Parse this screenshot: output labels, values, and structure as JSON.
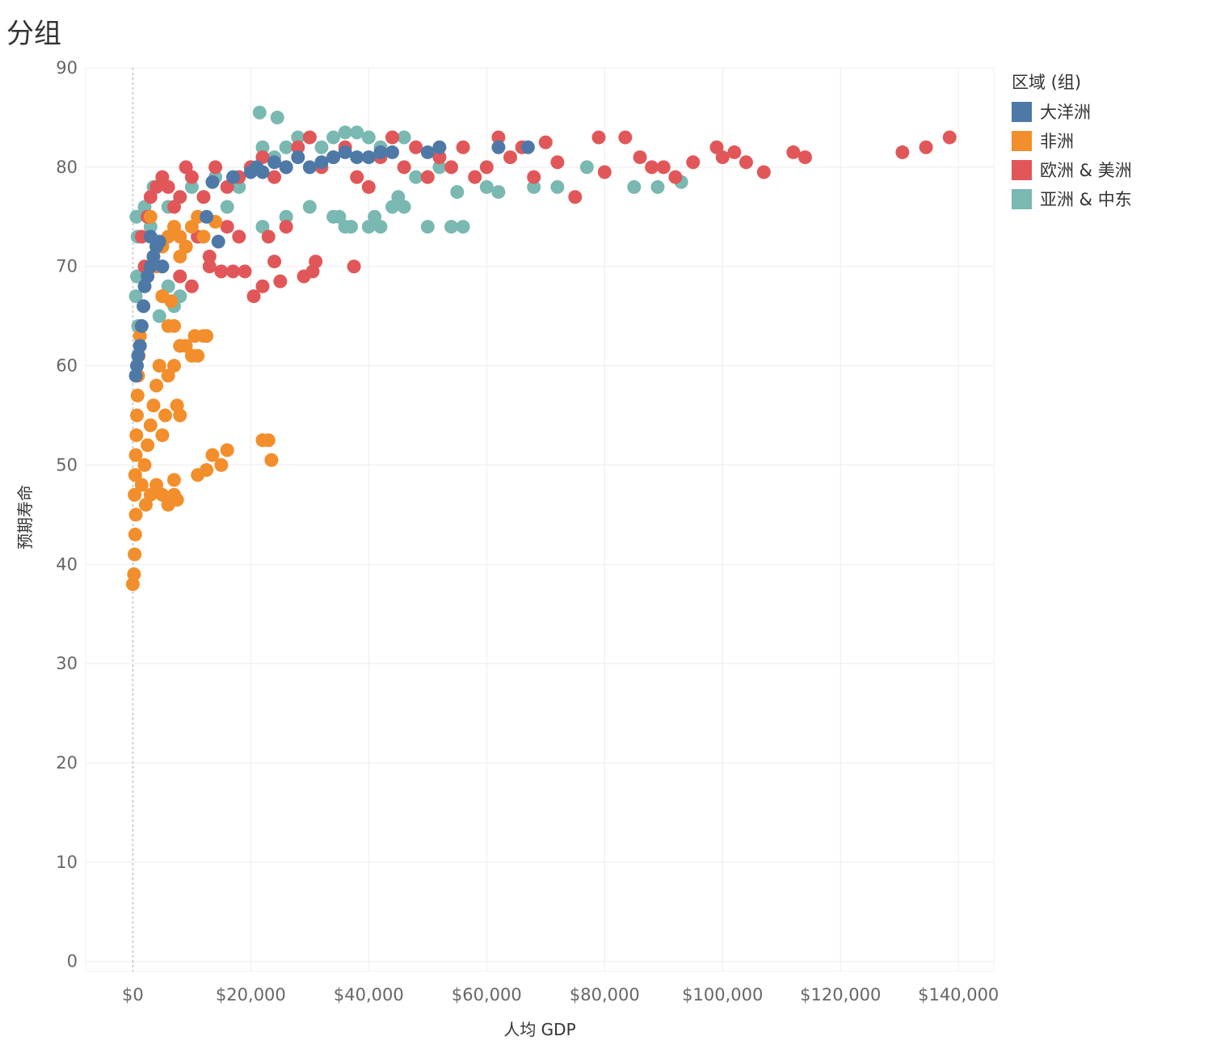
{
  "page": {
    "title": "分组"
  },
  "legend": {
    "title": "区域 (组)"
  },
  "chart_data": {
    "type": "scatter",
    "title": "分组",
    "xlabel": "人均 GDP",
    "ylabel": "预期寿命",
    "xlim": [
      -8000,
      146000
    ],
    "ylim": [
      -1,
      90
    ],
    "x_ticks": [
      0,
      20000,
      40000,
      60000,
      80000,
      100000,
      120000,
      140000
    ],
    "x_tick_labels": [
      "$0",
      "$20,000",
      "$40,000",
      "$60,000",
      "$80,000",
      "$100,000",
      "$120,000",
      "$140,000"
    ],
    "y_ticks": [
      0,
      10,
      20,
      30,
      40,
      50,
      60,
      70,
      80,
      90
    ],
    "y_tick_labels": [
      "0",
      "10",
      "20",
      "30",
      "40",
      "50",
      "60",
      "70",
      "80",
      "90"
    ],
    "grid": true,
    "legend_position": "right",
    "series": [
      {
        "name": "亚洲 & 中东",
        "color": "#7ab8b2",
        "points": [
          [
            21500,
            85.5
          ],
          [
            24500,
            85
          ],
          [
            600,
            75
          ],
          [
            800,
            73
          ],
          [
            700,
            69
          ],
          [
            500,
            67
          ],
          [
            900,
            64
          ],
          [
            1200,
            62
          ],
          [
            2000,
            76
          ],
          [
            3000,
            74
          ],
          [
            4000,
            72
          ],
          [
            5000,
            70
          ],
          [
            6000,
            68
          ],
          [
            7000,
            66
          ],
          [
            8000,
            67
          ],
          [
            4500,
            65
          ],
          [
            10000,
            78
          ],
          [
            12000,
            77
          ],
          [
            14000,
            79
          ],
          [
            16000,
            76
          ],
          [
            18000,
            78
          ],
          [
            20000,
            80
          ],
          [
            22000,
            82
          ],
          [
            24000,
            81
          ],
          [
            26000,
            82
          ],
          [
            28000,
            83
          ],
          [
            30000,
            83
          ],
          [
            32000,
            82
          ],
          [
            34000,
            83
          ],
          [
            36000,
            83.5
          ],
          [
            38000,
            83.5
          ],
          [
            40000,
            83
          ],
          [
            42000,
            82
          ],
          [
            44000,
            83
          ],
          [
            46000,
            83
          ],
          [
            35000,
            75
          ],
          [
            34000,
            75
          ],
          [
            36000,
            74
          ],
          [
            37000,
            74
          ],
          [
            40000,
            74
          ],
          [
            42000,
            74
          ],
          [
            44000,
            76
          ],
          [
            46000,
            76
          ],
          [
            50000,
            74
          ],
          [
            54000,
            74
          ],
          [
            56000,
            74
          ],
          [
            41000,
            75
          ],
          [
            45000,
            77
          ],
          [
            22000,
            74
          ],
          [
            26000,
            75
          ],
          [
            30000,
            76
          ],
          [
            52000,
            80
          ],
          [
            60000,
            78
          ],
          [
            62000,
            77.5
          ],
          [
            68000,
            78
          ],
          [
            72000,
            78
          ],
          [
            77000,
            80
          ],
          [
            85000,
            78
          ],
          [
            89000,
            78
          ],
          [
            93000,
            78.5
          ],
          [
            55000,
            77.5
          ],
          [
            48000,
            79
          ],
          [
            3500,
            78
          ],
          [
            6000,
            76
          ]
        ]
      },
      {
        "name": "欧洲 & 美洲",
        "color": "#e15759",
        "points": [
          [
            1500,
            73
          ],
          [
            2000,
            70
          ],
          [
            2500,
            75
          ],
          [
            3000,
            77
          ],
          [
            4000,
            78
          ],
          [
            5000,
            79
          ],
          [
            6000,
            78
          ],
          [
            7000,
            76
          ],
          [
            8000,
            77
          ],
          [
            9000,
            80
          ],
          [
            10000,
            79
          ],
          [
            12000,
            77
          ],
          [
            14000,
            80
          ],
          [
            16000,
            78
          ],
          [
            18000,
            79
          ],
          [
            20000,
            80
          ],
          [
            22000,
            81
          ],
          [
            24000,
            79
          ],
          [
            26000,
            80
          ],
          [
            28000,
            82
          ],
          [
            30000,
            83
          ],
          [
            32000,
            80
          ],
          [
            34000,
            81
          ],
          [
            36000,
            82
          ],
          [
            38000,
            79
          ],
          [
            40000,
            78
          ],
          [
            42000,
            81
          ],
          [
            44000,
            83
          ],
          [
            46000,
            80
          ],
          [
            48000,
            82
          ],
          [
            50000,
            79
          ],
          [
            52000,
            81
          ],
          [
            54000,
            80
          ],
          [
            56000,
            82
          ],
          [
            58000,
            79
          ],
          [
            60000,
            80
          ],
          [
            62000,
            83
          ],
          [
            64000,
            81
          ],
          [
            66000,
            82
          ],
          [
            68000,
            79
          ],
          [
            70000,
            82.5
          ],
          [
            72000,
            80.5
          ],
          [
            75000,
            77
          ],
          [
            79000,
            83
          ],
          [
            80000,
            79.5
          ],
          [
            83500,
            83
          ],
          [
            86000,
            81
          ],
          [
            88000,
            80
          ],
          [
            90000,
            80
          ],
          [
            92000,
            79
          ],
          [
            95000,
            80.5
          ],
          [
            99000,
            82
          ],
          [
            100000,
            81
          ],
          [
            102000,
            81.5
          ],
          [
            104000,
            80.5
          ],
          [
            107000,
            79.5
          ],
          [
            112000,
            81.5
          ],
          [
            114000,
            81
          ],
          [
            130500,
            81.5
          ],
          [
            134500,
            82
          ],
          [
            138500,
            83
          ],
          [
            5000,
            67
          ],
          [
            8000,
            69
          ],
          [
            10000,
            68
          ],
          [
            13000,
            70
          ],
          [
            15000,
            69.5
          ],
          [
            17000,
            69.5
          ],
          [
            19000,
            69.5
          ],
          [
            20500,
            67
          ],
          [
            22000,
            68
          ],
          [
            24000,
            70.5
          ],
          [
            25000,
            68.5
          ],
          [
            29000,
            69
          ],
          [
            30500,
            69.5
          ],
          [
            31000,
            70.5
          ],
          [
            37500,
            70
          ],
          [
            9000,
            72
          ],
          [
            11000,
            73
          ],
          [
            13000,
            71
          ],
          [
            23000,
            73
          ],
          [
            26000,
            74
          ],
          [
            18000,
            73
          ],
          [
            16000,
            74
          ]
        ]
      },
      {
        "name": "非洲",
        "color": "#f28e2b",
        "points": [
          [
            0,
            38
          ],
          [
            200,
            39
          ],
          [
            300,
            41
          ],
          [
            400,
            43
          ],
          [
            500,
            45
          ],
          [
            300,
            47
          ],
          [
            400,
            49
          ],
          [
            500,
            51
          ],
          [
            600,
            53
          ],
          [
            700,
            55
          ],
          [
            800,
            57
          ],
          [
            900,
            59
          ],
          [
            1000,
            61
          ],
          [
            1200,
            63
          ],
          [
            1500,
            48
          ],
          [
            2000,
            50
          ],
          [
            2500,
            52
          ],
          [
            3000,
            54
          ],
          [
            3500,
            56
          ],
          [
            4000,
            58
          ],
          [
            4500,
            60
          ],
          [
            2200,
            46
          ],
          [
            3000,
            47
          ],
          [
            4000,
            48
          ],
          [
            5000,
            47
          ],
          [
            6000,
            46
          ],
          [
            7000,
            47
          ],
          [
            7500,
            46.5
          ],
          [
            7000,
            48.5
          ],
          [
            5000,
            53
          ],
          [
            5500,
            55
          ],
          [
            6000,
            59
          ],
          [
            7000,
            60
          ],
          [
            7500,
            56
          ],
          [
            8000,
            55
          ],
          [
            8000,
            62
          ],
          [
            9000,
            62
          ],
          [
            10000,
            61
          ],
          [
            10500,
            63
          ],
          [
            11000,
            61
          ],
          [
            12000,
            63
          ],
          [
            12500,
            63
          ],
          [
            11000,
            49
          ],
          [
            12500,
            49.5
          ],
          [
            13500,
            51
          ],
          [
            15000,
            50
          ],
          [
            16000,
            51.5
          ],
          [
            22000,
            52.5
          ],
          [
            23000,
            52.5
          ],
          [
            23500,
            50.5
          ],
          [
            6000,
            64
          ],
          [
            7000,
            64
          ],
          [
            5000,
            67
          ],
          [
            6500,
            66.5
          ],
          [
            4000,
            70
          ],
          [
            5000,
            72
          ],
          [
            6000,
            73
          ],
          [
            7000,
            74
          ],
          [
            8000,
            73
          ],
          [
            9000,
            72
          ],
          [
            10000,
            74
          ],
          [
            11000,
            75
          ],
          [
            12000,
            73
          ],
          [
            14000,
            74.5
          ],
          [
            8000,
            71
          ],
          [
            3000,
            75
          ]
        ]
      },
      {
        "name": "大洋洲",
        "color": "#4e79a7",
        "points": [
          [
            500,
            59
          ],
          [
            700,
            60
          ],
          [
            900,
            61
          ],
          [
            1200,
            62
          ],
          [
            1500,
            64
          ],
          [
            1800,
            66
          ],
          [
            2000,
            68
          ],
          [
            2500,
            69
          ],
          [
            3000,
            70
          ],
          [
            3500,
            71
          ],
          [
            4000,
            72
          ],
          [
            4500,
            72.5
          ],
          [
            5000,
            70
          ],
          [
            3000,
            73
          ],
          [
            12500,
            75
          ],
          [
            14500,
            72.5
          ],
          [
            13500,
            78.5
          ],
          [
            17000,
            79
          ],
          [
            20000,
            79.5
          ],
          [
            21000,
            80
          ],
          [
            22000,
            79.5
          ],
          [
            24000,
            80.5
          ],
          [
            26000,
            80
          ],
          [
            28000,
            81
          ],
          [
            30000,
            80
          ],
          [
            32000,
            80.5
          ],
          [
            34000,
            81
          ],
          [
            36000,
            81.5
          ],
          [
            38000,
            81
          ],
          [
            40000,
            81
          ],
          [
            42000,
            81.5
          ],
          [
            44000,
            81.5
          ],
          [
            50000,
            81.5
          ],
          [
            52000,
            82
          ],
          [
            62000,
            82
          ],
          [
            67000,
            82
          ]
        ]
      }
    ]
  }
}
